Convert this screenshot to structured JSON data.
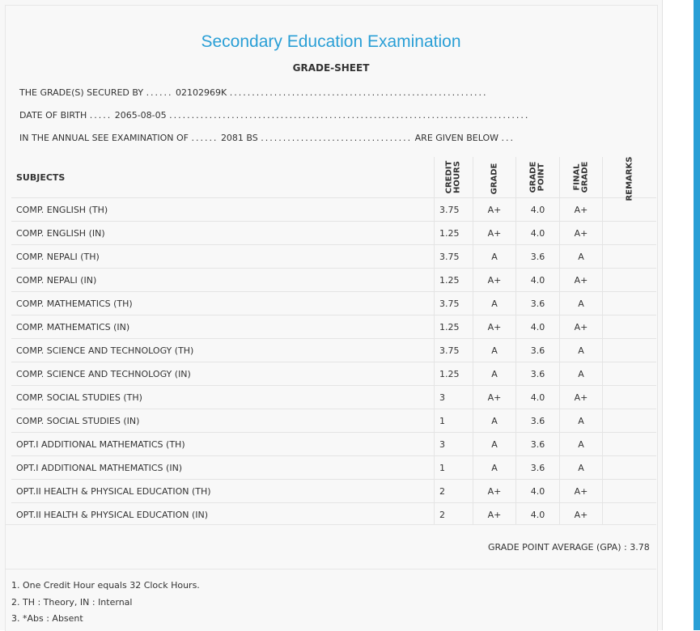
{
  "header": {
    "title": "Secondary Education Examination",
    "subtitle": "GRADE-SHEET"
  },
  "info": {
    "grade_secured_label": "THE GRADE(S) SECURED BY",
    "symbol_no": "02102969K",
    "dob_label": "DATE OF BIRTH",
    "dob": "2065-08-05",
    "exam_label": "IN THE ANNUAL SEE EXAMINATION OF",
    "exam_year": "2081 BS",
    "exam_suffix": "ARE GIVEN BELOW"
  },
  "table": {
    "headers": {
      "subjects": "SUBJECTS",
      "credit_hours_1": "CREDIT",
      "credit_hours_2": "HOURS",
      "grade": "GRADE",
      "grade_point_1": "GRADE",
      "grade_point_2": "POINT",
      "final_grade_1": "FINAL",
      "final_grade_2": "GRADE",
      "remarks": "REMARKS"
    },
    "rows": [
      {
        "subject": "COMP. ENGLISH (TH)",
        "credit": "3.75",
        "grade": "A+",
        "point": "4.0",
        "final": "A+",
        "remarks": ""
      },
      {
        "subject": "COMP. ENGLISH (IN)",
        "credit": "1.25",
        "grade": "A+",
        "point": "4.0",
        "final": "A+",
        "remarks": ""
      },
      {
        "subject": "COMP. NEPALI (TH)",
        "credit": "3.75",
        "grade": "A",
        "point": "3.6",
        "final": "A",
        "remarks": ""
      },
      {
        "subject": "COMP. NEPALI (IN)",
        "credit": "1.25",
        "grade": "A+",
        "point": "4.0",
        "final": "A+",
        "remarks": ""
      },
      {
        "subject": "COMP. MATHEMATICS (TH)",
        "credit": "3.75",
        "grade": "A",
        "point": "3.6",
        "final": "A",
        "remarks": ""
      },
      {
        "subject": "COMP. MATHEMATICS (IN)",
        "credit": "1.25",
        "grade": "A+",
        "point": "4.0",
        "final": "A+",
        "remarks": ""
      },
      {
        "subject": "COMP. SCIENCE AND TECHNOLOGY (TH)",
        "credit": "3.75",
        "grade": "A",
        "point": "3.6",
        "final": "A",
        "remarks": ""
      },
      {
        "subject": "COMP. SCIENCE AND TECHNOLOGY (IN)",
        "credit": "1.25",
        "grade": "A",
        "point": "3.6",
        "final": "A",
        "remarks": ""
      },
      {
        "subject": "COMP. SOCIAL STUDIES (TH)",
        "credit": "3",
        "grade": "A+",
        "point": "4.0",
        "final": "A+",
        "remarks": ""
      },
      {
        "subject": "COMP. SOCIAL STUDIES (IN)",
        "credit": "1",
        "grade": "A",
        "point": "3.6",
        "final": "A",
        "remarks": ""
      },
      {
        "subject": "OPT.I ADDITIONAL MATHEMATICS (TH)",
        "credit": "3",
        "grade": "A",
        "point": "3.6",
        "final": "A",
        "remarks": ""
      },
      {
        "subject": "OPT.I ADDITIONAL MATHEMATICS (IN)",
        "credit": "1",
        "grade": "A",
        "point": "3.6",
        "final": "A",
        "remarks": ""
      },
      {
        "subject": "OPT.II HEALTH & PHYSICAL EDUCATION (TH)",
        "credit": "2",
        "grade": "A+",
        "point": "4.0",
        "final": "A+",
        "remarks": ""
      },
      {
        "subject": "OPT.II HEALTH & PHYSICAL EDUCATION (IN)",
        "credit": "2",
        "grade": "A+",
        "point": "4.0",
        "final": "A+",
        "remarks": ""
      }
    ]
  },
  "gpa": {
    "label": "GRADE POINT AVERAGE (GPA) :",
    "value": "3.78"
  },
  "notes": [
    "1. One Credit Hour equals 32 Clock Hours.",
    "2. TH : Theory, IN : Internal",
    "3. *Abs : Absent"
  ],
  "colors": {
    "title": "#2a9fd6",
    "accent_bar": "#2a9fd6"
  }
}
